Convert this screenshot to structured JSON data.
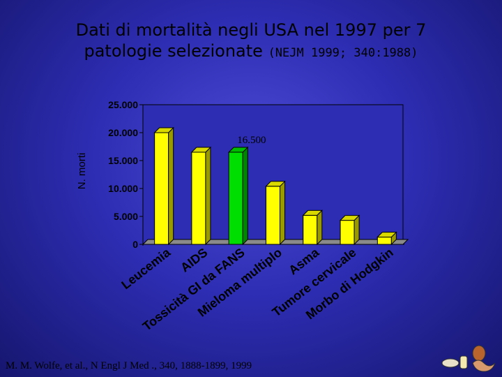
{
  "title": {
    "line1": "Dati di mortalità negli USA nel 1997 per 7",
    "line2": "patologie selezionate",
    "reference": "(NEJM 1999; 340:1988)"
  },
  "footer": {
    "citation": "M. M. Wolfe, et al., N Engl J Med ., 340, 1888-1899, 1999"
  },
  "colors": {
    "bar_yellow": "#ffff00",
    "bar_green": "#00dd00",
    "plot_background": "#2d2db3",
    "text": "#000000"
  },
  "chart_data": {
    "type": "bar",
    "ylabel": "N. morti",
    "ylim": [
      0,
      25000
    ],
    "yticks": [
      0,
      5000,
      10000,
      15000,
      20000,
      25000
    ],
    "ytick_labels": [
      "0",
      "5.000",
      "10.000",
      "15.000",
      "20.000",
      "25.000"
    ],
    "categories": [
      "Leucemia",
      "AIDS",
      "Tossicità GI da FANS",
      "Mieloma multiplo",
      "Asma",
      "Tumore cervicale",
      "Morbo di Hodgkin"
    ],
    "values": [
      20000,
      16500,
      16500,
      10400,
      5200,
      4300,
      1300
    ],
    "highlight_index": 2,
    "annotations": [
      {
        "category": "Tossicità GI da FANS",
        "text": "16.500"
      }
    ],
    "grid": false,
    "legend": "none",
    "bar_style": "3d"
  }
}
